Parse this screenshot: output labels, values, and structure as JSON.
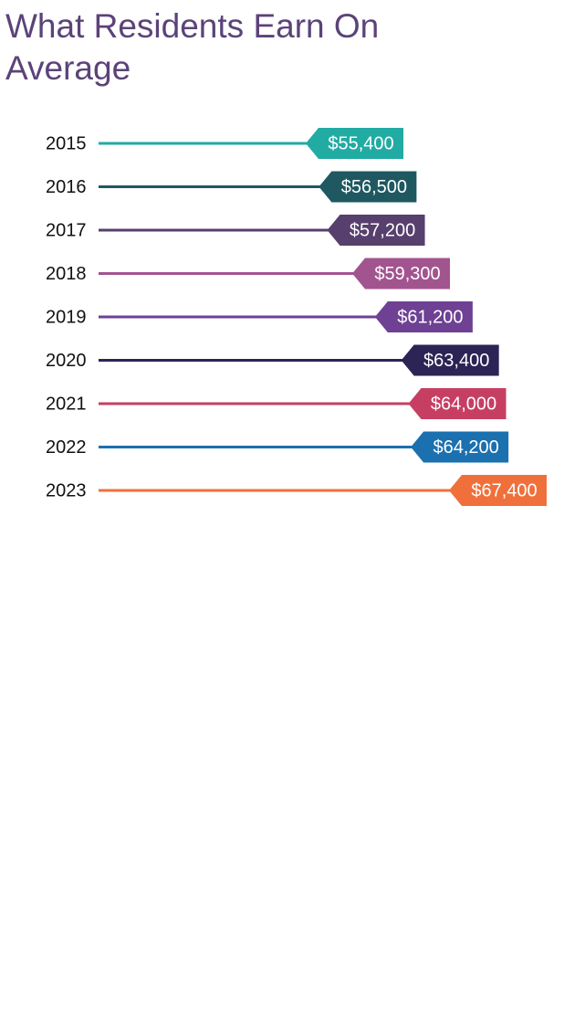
{
  "chart_data": {
    "type": "bar",
    "title": "What Residents Earn On Average",
    "categories": [
      "2015",
      "2016",
      "2017",
      "2018",
      "2019",
      "2020",
      "2021",
      "2022",
      "2023"
    ],
    "values": [
      55400,
      56500,
      57200,
      59300,
      61200,
      63400,
      64000,
      64200,
      67400
    ],
    "value_labels": [
      "$55,400",
      "$56,500",
      "$57,200",
      "$59,300",
      "$61,200",
      "$63,400",
      "$64,000",
      "$64,200",
      "$67,400"
    ],
    "colors": [
      "#22aba3",
      "#1f5860",
      "#573f6e",
      "#a2548f",
      "#6e4194",
      "#2b2455",
      "#c63f63",
      "#1b70af",
      "#f0703b"
    ]
  }
}
